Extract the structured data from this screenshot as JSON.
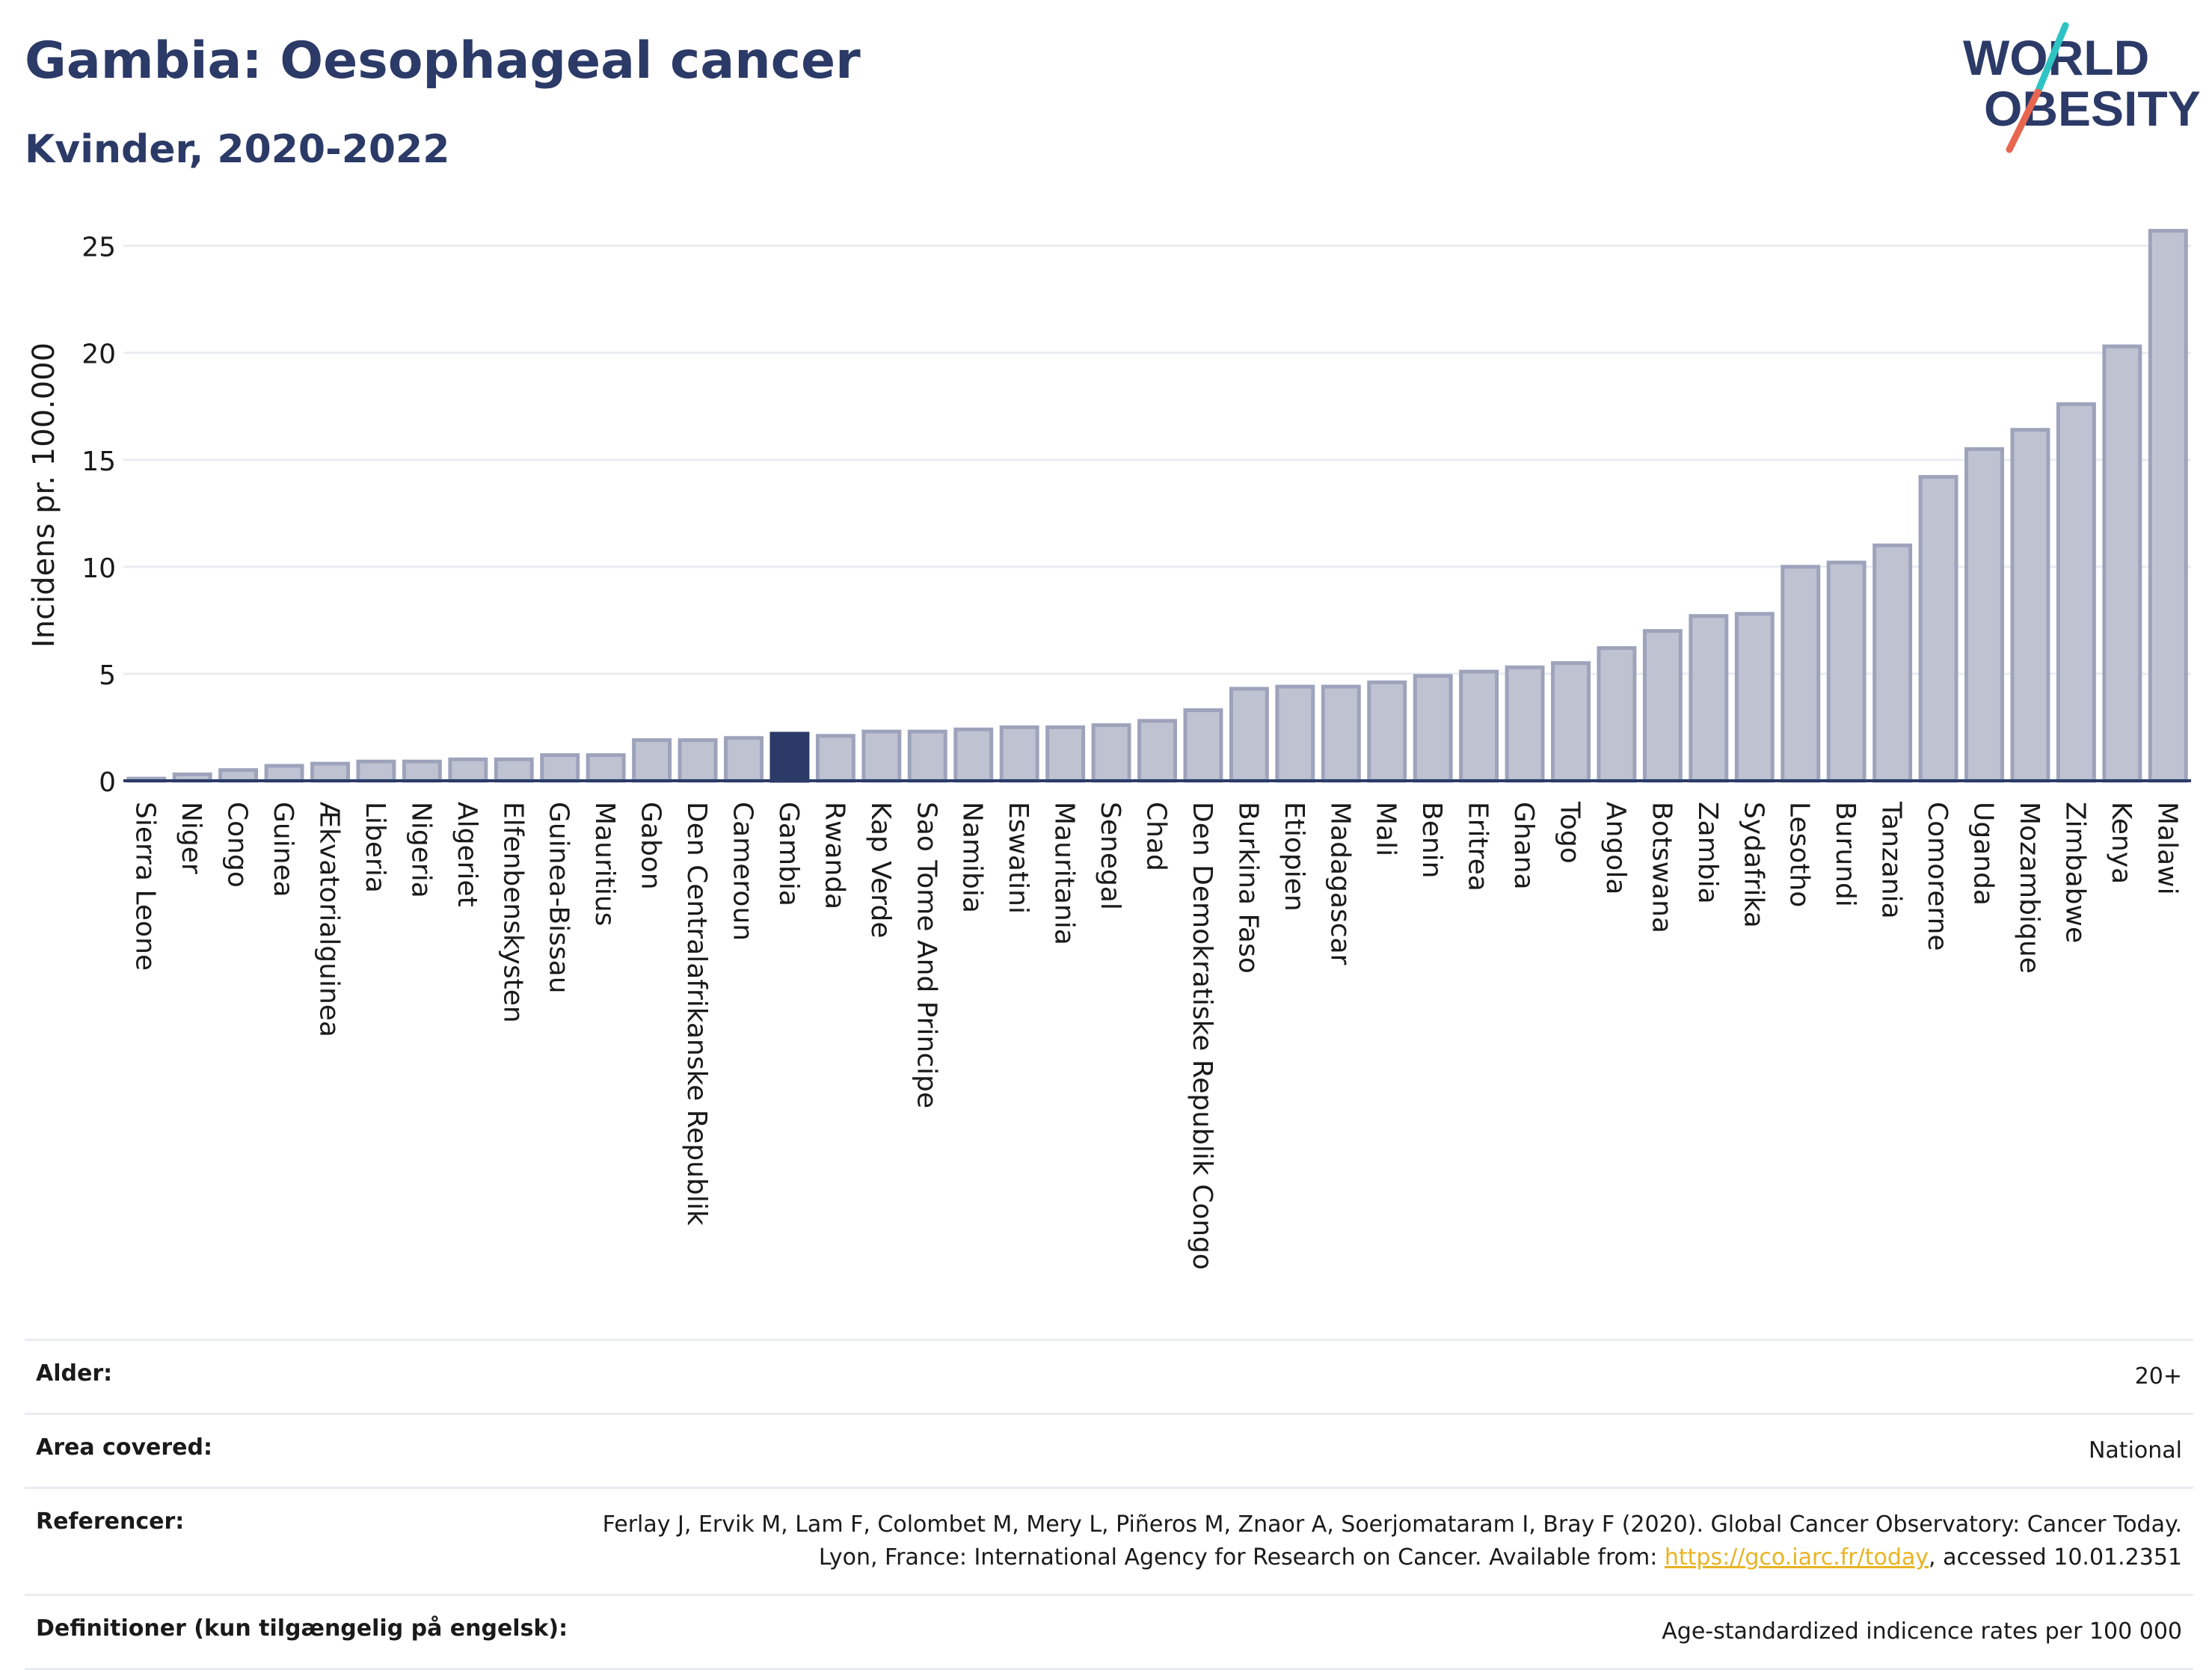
{
  "header": {
    "title": "Gambia: Oesophageal cancer",
    "subtitle": "Kvinder, 2020-2022"
  },
  "logo": {
    "line1": "WORLD",
    "line2": "OBESITY",
    "colors": {
      "text": "#2b3a67",
      "slash_teal": "#2ec4c4",
      "slash_red": "#e8664f"
    }
  },
  "colors": {
    "bar_fill": "#bfc3d1",
    "bar_stroke": "#9ea3bc",
    "highlight_fill": "#2b3a67",
    "axis": "#2b3a67",
    "grid": "#e9edf1"
  },
  "chart_data": {
    "type": "bar",
    "ylabel": "Incidens pr. 100.000",
    "ylim": [
      0,
      26
    ],
    "yticks": [
      0,
      5,
      10,
      15,
      20,
      25
    ],
    "grid": true,
    "highlight": "Gambia",
    "categories": [
      "Sierra Leone",
      "Niger",
      "Congo",
      "Guinea",
      "Ækvatorialguinea",
      "Liberia",
      "Nigeria",
      "Algeriet",
      "Elfenbenskysten",
      "Guinea-Bissau",
      "Mauritius",
      "Gabon",
      "Den Centralafrikanske Republik",
      "Cameroun",
      "Gambia",
      "Rwanda",
      "Kap Verde",
      "Sao Tome And Principe",
      "Namibia",
      "Eswatini",
      "Mauritania",
      "Senegal",
      "Chad",
      "Den Demokratiske Republik Congo",
      "Burkina Faso",
      "Etiopien",
      "Madagascar",
      "Mali",
      "Benin",
      "Eritrea",
      "Ghana",
      "Togo",
      "Angola",
      "Botswana",
      "Zambia",
      "Sydafrika",
      "Lesotho",
      "Burundi",
      "Tanzania",
      "Comorerne",
      "Uganda",
      "Mozambique",
      "Zimbabwe",
      "Kenya",
      "Malawi"
    ],
    "values": [
      0.1,
      0.3,
      0.5,
      0.7,
      0.8,
      0.9,
      0.9,
      1.0,
      1.0,
      1.2,
      1.2,
      1.9,
      1.9,
      2.0,
      2.2,
      2.1,
      2.3,
      2.3,
      2.4,
      2.5,
      2.5,
      2.6,
      2.8,
      3.3,
      4.3,
      4.4,
      4.4,
      4.6,
      4.9,
      5.1,
      5.3,
      5.5,
      6.2,
      7.0,
      7.7,
      7.8,
      10.0,
      10.2,
      11.0,
      14.2,
      15.5,
      16.4,
      17.6,
      20.3,
      25.7
    ]
  },
  "info": [
    {
      "label": "Alder:",
      "value": "20+"
    },
    {
      "label": "Area covered:",
      "value": "National"
    },
    {
      "label": "Referencer:",
      "value_pre": "Ferlay J, Ervik M, Lam F, Colombet M, Mery L, Piñeros M, Znaor A, Soerjomataram I, Bray F (2020). Global Cancer Observatory: Cancer Today. Lyon, France: International Agency for Research on Cancer. Available from: ",
      "link": "https://gco.iarc.fr/today",
      "value_post": ", accessed 10.01.2351"
    },
    {
      "label": "Definitioner (kun tilgængelig på engelsk):",
      "value": "Age-standardized indicence rates per 100 000"
    }
  ]
}
